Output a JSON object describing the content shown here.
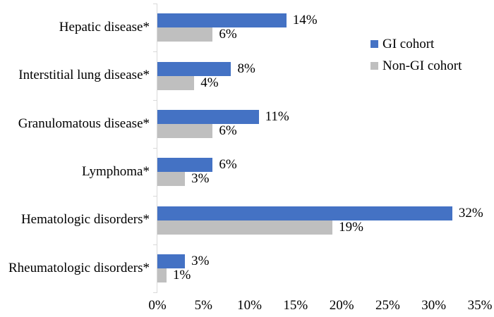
{
  "chart_data": {
    "type": "bar",
    "orientation": "horizontal",
    "title": "",
    "categories": [
      "Hepatic disease*",
      "Interstitial lung disease*",
      "Granulomatous disease*",
      "Lymphoma*",
      "Hematologic disorders*",
      "Rheumatologic disorders*"
    ],
    "series": [
      {
        "name": "GI cohort",
        "color": "#4472C4",
        "values": [
          14,
          8,
          11,
          6,
          32,
          3
        ]
      },
      {
        "name": "Non-GI cohort",
        "color": "#BFBFBF",
        "values": [
          6,
          4,
          6,
          3,
          19,
          1
        ]
      }
    ],
    "value_label_suffix": "%",
    "x_tick_labels": [
      "0%",
      "5%",
      "10%",
      "15%",
      "20%",
      "25%",
      "30%",
      "35%"
    ],
    "x_tick_values": [
      0,
      5,
      10,
      15,
      20,
      25,
      30,
      35
    ],
    "xlim": [
      0,
      35
    ],
    "grid": false,
    "legend_position": "upper-right",
    "axis_line_color": "#D9D9D9",
    "text_color": "#000000",
    "background_color": "#FFFFFF"
  }
}
